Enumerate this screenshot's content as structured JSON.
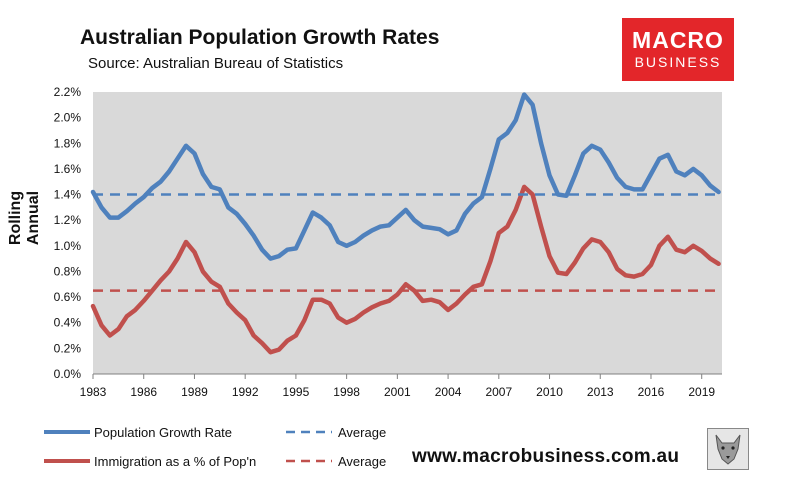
{
  "header": {
    "title": "Australian Population Growth Rates",
    "subtitle": "Source: Australian Bureau of Statistics"
  },
  "logo": {
    "line1": "MACRO",
    "line2": "BUSINESS"
  },
  "footer": {
    "url": "www.macrobusiness.com.au"
  },
  "colors": {
    "population": "#4f81bd",
    "immigration": "#c0504d",
    "plot_bg": "#d9d9d9"
  },
  "chart_data": {
    "type": "line",
    "title": "Australian Population Growth Rates",
    "ylabel": "Rolling Annual",
    "xlabel": "",
    "xlim": [
      1983,
      2020.2
    ],
    "ylim": [
      0,
      2.2
    ],
    "x_ticks": [
      1983,
      1986,
      1989,
      1992,
      1995,
      1998,
      2001,
      2004,
      2007,
      2010,
      2013,
      2016,
      2019
    ],
    "x_tick_labels": [
      "1983",
      "1986",
      "1989",
      "1992",
      "1995",
      "1998",
      "2001",
      "2004",
      "2007",
      "2010",
      "2013",
      "2016",
      "2019"
    ],
    "y_ticks": [
      0,
      0.2,
      0.4,
      0.6,
      0.8,
      1.0,
      1.2,
      1.4,
      1.6,
      1.8,
      2.0,
      2.2
    ],
    "y_tick_labels": [
      "0.0%",
      "0.2%",
      "0.4%",
      "0.6%",
      "0.8%",
      "1.0%",
      "1.2%",
      "1.4%",
      "1.6%",
      "1.8%",
      "2.0%",
      "2.2%"
    ],
    "series": [
      {
        "name": "Population Growth Rate",
        "color": "#4f81bd",
        "style": "solid",
        "points": [
          [
            1983,
            1.42
          ],
          [
            1983.5,
            1.3
          ],
          [
            1984,
            1.22
          ],
          [
            1984.5,
            1.22
          ],
          [
            1985,
            1.27
          ],
          [
            1985.5,
            1.33
          ],
          [
            1986,
            1.38
          ],
          [
            1986.5,
            1.45
          ],
          [
            1987,
            1.5
          ],
          [
            1987.5,
            1.58
          ],
          [
            1988,
            1.68
          ],
          [
            1988.5,
            1.78
          ],
          [
            1989,
            1.72
          ],
          [
            1989.5,
            1.56
          ],
          [
            1990,
            1.46
          ],
          [
            1990.5,
            1.44
          ],
          [
            1991,
            1.3
          ],
          [
            1991.5,
            1.25
          ],
          [
            1992,
            1.17
          ],
          [
            1992.5,
            1.08
          ],
          [
            1993,
            0.97
          ],
          [
            1993.5,
            0.9
          ],
          [
            1994,
            0.92
          ],
          [
            1994.5,
            0.97
          ],
          [
            1995,
            0.98
          ],
          [
            1995.5,
            1.12
          ],
          [
            1996,
            1.26
          ],
          [
            1996.5,
            1.22
          ],
          [
            1997,
            1.16
          ],
          [
            1997.5,
            1.03
          ],
          [
            1998,
            1.0
          ],
          [
            1998.5,
            1.03
          ],
          [
            1999,
            1.08
          ],
          [
            1999.5,
            1.12
          ],
          [
            2000,
            1.15
          ],
          [
            2000.5,
            1.16
          ],
          [
            2001,
            1.22
          ],
          [
            2001.5,
            1.28
          ],
          [
            2002,
            1.2
          ],
          [
            2002.5,
            1.15
          ],
          [
            2003,
            1.14
          ],
          [
            2003.5,
            1.13
          ],
          [
            2004,
            1.09
          ],
          [
            2004.5,
            1.12
          ],
          [
            2005,
            1.25
          ],
          [
            2005.5,
            1.33
          ],
          [
            2006,
            1.38
          ],
          [
            2006.5,
            1.6
          ],
          [
            2007,
            1.83
          ],
          [
            2007.5,
            1.88
          ],
          [
            2008,
            1.98
          ],
          [
            2008.5,
            2.18
          ],
          [
            2009,
            2.1
          ],
          [
            2009.5,
            1.8
          ],
          [
            2010,
            1.55
          ],
          [
            2010.5,
            1.4
          ],
          [
            2011,
            1.39
          ],
          [
            2011.5,
            1.55
          ],
          [
            2012,
            1.72
          ],
          [
            2012.5,
            1.78
          ],
          [
            2013,
            1.75
          ],
          [
            2013.5,
            1.65
          ],
          [
            2014,
            1.53
          ],
          [
            2014.5,
            1.46
          ],
          [
            2015,
            1.44
          ],
          [
            2015.5,
            1.44
          ],
          [
            2016,
            1.56
          ],
          [
            2016.5,
            1.68
          ],
          [
            2017,
            1.71
          ],
          [
            2017.5,
            1.58
          ],
          [
            2018,
            1.55
          ],
          [
            2018.5,
            1.6
          ],
          [
            2019,
            1.55
          ],
          [
            2019.5,
            1.47
          ],
          [
            2020,
            1.42
          ]
        ]
      },
      {
        "name": "Immigration as a % of Pop'n",
        "color": "#c0504d",
        "style": "solid",
        "points": [
          [
            1983,
            0.53
          ],
          [
            1983.5,
            0.38
          ],
          [
            1984,
            0.3
          ],
          [
            1984.5,
            0.35
          ],
          [
            1985,
            0.45
          ],
          [
            1985.5,
            0.5
          ],
          [
            1986,
            0.57
          ],
          [
            1986.5,
            0.65
          ],
          [
            1987,
            0.73
          ],
          [
            1987.5,
            0.8
          ],
          [
            1988,
            0.9
          ],
          [
            1988.5,
            1.03
          ],
          [
            1989,
            0.95
          ],
          [
            1989.5,
            0.8
          ],
          [
            1990,
            0.72
          ],
          [
            1990.5,
            0.68
          ],
          [
            1991,
            0.55
          ],
          [
            1991.5,
            0.48
          ],
          [
            1992,
            0.42
          ],
          [
            1992.5,
            0.3
          ],
          [
            1993,
            0.24
          ],
          [
            1993.5,
            0.17
          ],
          [
            1994,
            0.19
          ],
          [
            1994.5,
            0.26
          ],
          [
            1995,
            0.3
          ],
          [
            1995.5,
            0.42
          ],
          [
            1996,
            0.58
          ],
          [
            1996.5,
            0.58
          ],
          [
            1997,
            0.55
          ],
          [
            1997.5,
            0.44
          ],
          [
            1998,
            0.4
          ],
          [
            1998.5,
            0.43
          ],
          [
            1999,
            0.48
          ],
          [
            1999.5,
            0.52
          ],
          [
            2000,
            0.55
          ],
          [
            2000.5,
            0.57
          ],
          [
            2001,
            0.62
          ],
          [
            2001.5,
            0.7
          ],
          [
            2002,
            0.65
          ],
          [
            2002.5,
            0.57
          ],
          [
            2003,
            0.58
          ],
          [
            2003.5,
            0.56
          ],
          [
            2004,
            0.5
          ],
          [
            2004.5,
            0.55
          ],
          [
            2005,
            0.62
          ],
          [
            2005.5,
            0.68
          ],
          [
            2006,
            0.7
          ],
          [
            2006.5,
            0.88
          ],
          [
            2007,
            1.1
          ],
          [
            2007.5,
            1.15
          ],
          [
            2008,
            1.28
          ],
          [
            2008.5,
            1.46
          ],
          [
            2009,
            1.4
          ],
          [
            2009.5,
            1.15
          ],
          [
            2010,
            0.92
          ],
          [
            2010.5,
            0.79
          ],
          [
            2011,
            0.78
          ],
          [
            2011.5,
            0.87
          ],
          [
            2012,
            0.98
          ],
          [
            2012.5,
            1.05
          ],
          [
            2013,
            1.03
          ],
          [
            2013.5,
            0.95
          ],
          [
            2014,
            0.82
          ],
          [
            2014.5,
            0.77
          ],
          [
            2015,
            0.76
          ],
          [
            2015.5,
            0.78
          ],
          [
            2016,
            0.85
          ],
          [
            2016.5,
            1.0
          ],
          [
            2017,
            1.07
          ],
          [
            2017.5,
            0.97
          ],
          [
            2018,
            0.95
          ],
          [
            2018.5,
            1.0
          ],
          [
            2019,
            0.96
          ],
          [
            2019.5,
            0.9
          ],
          [
            2020,
            0.86
          ]
        ]
      },
      {
        "name": "Average",
        "color": "#4f81bd",
        "style": "dashed",
        "value": 1.4
      },
      {
        "name": "Average",
        "color": "#c0504d",
        "style": "dashed",
        "value": 0.65
      }
    ]
  }
}
